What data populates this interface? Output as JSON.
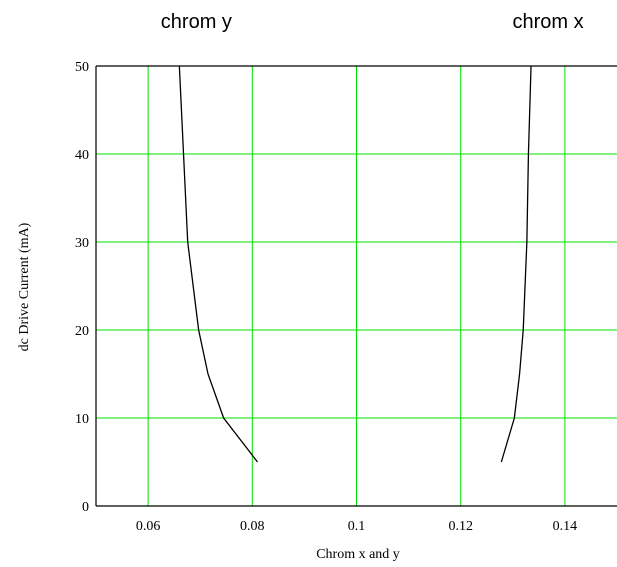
{
  "chart_data": {
    "type": "line",
    "title": "",
    "xlabel": "Chrom x and y",
    "ylabel": "dc Drive Current (mA)",
    "xlim": [
      0.05,
      0.15
    ],
    "ylim": [
      0,
      50
    ],
    "xticks": [
      0.06,
      0.08,
      0.1,
      0.12,
      0.14
    ],
    "xtick_labels": [
      "0.06",
      "0.08",
      "0.1",
      "0.12",
      "0.14"
    ],
    "yticks": [
      0,
      10,
      20,
      30,
      40,
      50
    ],
    "ytick_labels": [
      "0",
      "10",
      "20",
      "30",
      "40",
      "50"
    ],
    "grid": true,
    "grid_color": "#00e000",
    "line_color": "#000000",
    "annotations": [
      {
        "text": "chrom y",
        "series": "chrom y"
      },
      {
        "text": "chrom x",
        "series": "chrom x"
      }
    ],
    "series": [
      {
        "name": "chrom y",
        "points": [
          {
            "x": 0.081,
            "y": 5
          },
          {
            "x": 0.0745,
            "y": 10
          },
          {
            "x": 0.0715,
            "y": 15
          },
          {
            "x": 0.0697,
            "y": 20
          },
          {
            "x": 0.0676,
            "y": 30
          },
          {
            "x": 0.0668,
            "y": 40
          },
          {
            "x": 0.066,
            "y": 50
          }
        ]
      },
      {
        "name": "chrom x",
        "points": [
          {
            "x": 0.1278,
            "y": 5
          },
          {
            "x": 0.1303,
            "y": 10
          },
          {
            "x": 0.1313,
            "y": 15
          },
          {
            "x": 0.132,
            "y": 20
          },
          {
            "x": 0.1327,
            "y": 30
          },
          {
            "x": 0.133,
            "y": 40
          },
          {
            "x": 0.1335,
            "y": 50
          }
        ]
      }
    ]
  }
}
